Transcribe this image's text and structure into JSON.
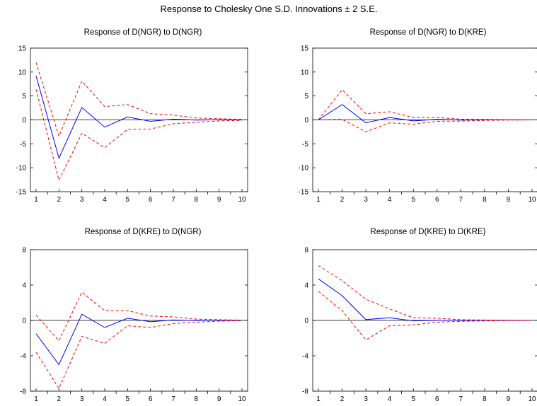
{
  "figure": {
    "title": "Response to Cholesky One S.D. Innovations ± 2 S.E.",
    "colors": {
      "response": "#0000ff",
      "band": "#ff0000",
      "axis": "#000000"
    },
    "line_styles": {
      "response": "solid",
      "band": "dashed"
    },
    "panels": [
      {
        "title": "Response of D(NGR) to D(NGR)",
        "ylim": [
          -15,
          15
        ],
        "yticks": [
          "15",
          "10",
          "5",
          "0",
          "-5",
          "-10",
          "-15"
        ],
        "ytick_values": [
          15,
          10,
          5,
          0,
          -5,
          -10,
          -15
        ],
        "xticks": [
          "1",
          "2",
          "3",
          "4",
          "5",
          "6",
          "7",
          "8",
          "9",
          "10"
        ]
      },
      {
        "title": "Response of D(NGR) to D(KRE)",
        "ylim": [
          -15,
          15
        ],
        "yticks": [
          "15",
          "10",
          "5",
          "0",
          "-5",
          "-10",
          "-15"
        ],
        "ytick_values": [
          15,
          10,
          5,
          0,
          -5,
          -10,
          -15
        ],
        "xticks": [
          "1",
          "2",
          "3",
          "4",
          "5",
          "6",
          "7",
          "8",
          "9",
          "10"
        ]
      },
      {
        "title": "Response of D(KRE) to D(NGR)",
        "ylim": [
          -8,
          8
        ],
        "yticks": [
          "8",
          "4",
          "0",
          "-4",
          "-8"
        ],
        "ytick_values": [
          8,
          4,
          0,
          -4,
          -8
        ],
        "xticks": [
          "1",
          "2",
          "3",
          "4",
          "5",
          "6",
          "7",
          "8",
          "9",
          "10"
        ]
      },
      {
        "title": "Response of D(KRE) to D(KRE)",
        "ylim": [
          -8,
          8
        ],
        "yticks": [
          "8",
          "4",
          "0",
          "-4",
          "-8"
        ],
        "ytick_values": [
          8,
          4,
          0,
          -4,
          -8
        ],
        "xticks": [
          "1",
          "2",
          "3",
          "4",
          "5",
          "6",
          "7",
          "8",
          "9",
          "10"
        ]
      }
    ]
  },
  "chart_data": [
    {
      "type": "line",
      "x": [
        1,
        2,
        3,
        4,
        5,
        6,
        7,
        8,
        9,
        10
      ],
      "ylim": [
        -15,
        15
      ],
      "series": [
        {
          "values": [
            9.2,
            -8.0,
            2.6,
            -1.5,
            0.6,
            -0.3,
            0.15,
            -0.05,
            0.02,
            0.0
          ]
        },
        {
          "values": [
            12.0,
            -3.4,
            8.1,
            2.8,
            3.2,
            1.3,
            1.0,
            0.4,
            0.25,
            0.1
          ]
        },
        {
          "values": [
            6.4,
            -12.6,
            -2.8,
            -5.8,
            -2.0,
            -1.9,
            -0.8,
            -0.5,
            -0.2,
            -0.1
          ]
        }
      ]
    },
    {
      "type": "line",
      "x": [
        1,
        2,
        3,
        4,
        5,
        6,
        7,
        8,
        9,
        10
      ],
      "ylim": [
        -15,
        15
      ],
      "series": [
        {
          "values": [
            0.0,
            3.2,
            -0.6,
            0.5,
            -0.2,
            0.1,
            -0.05,
            0.02,
            0.0,
            0.0
          ]
        },
        {
          "values": [
            0.0,
            6.3,
            1.3,
            1.7,
            0.5,
            0.5,
            0.15,
            0.1,
            0.05,
            0.02
          ]
        },
        {
          "values": [
            0.0,
            0.1,
            -2.5,
            -0.6,
            -0.9,
            -0.3,
            -0.25,
            -0.1,
            -0.05,
            -0.02
          ]
        }
      ]
    },
    {
      "type": "line",
      "x": [
        1,
        2,
        3,
        4,
        5,
        6,
        7,
        8,
        9,
        10
      ],
      "ylim": [
        -8,
        8
      ],
      "series": [
        {
          "values": [
            -1.5,
            -5.0,
            0.7,
            -0.8,
            0.25,
            -0.15,
            0.05,
            -0.02,
            0.01,
            0.0
          ]
        },
        {
          "values": [
            0.6,
            -2.3,
            3.2,
            1.1,
            1.1,
            0.5,
            0.4,
            0.15,
            0.08,
            0.03
          ]
        },
        {
          "values": [
            -3.6,
            -7.7,
            -1.8,
            -2.6,
            -0.6,
            -0.8,
            -0.35,
            -0.2,
            -0.08,
            -0.03
          ]
        }
      ]
    },
    {
      "type": "line",
      "x": [
        1,
        2,
        3,
        4,
        5,
        6,
        7,
        8,
        9,
        10
      ],
      "ylim": [
        -8,
        8
      ],
      "series": [
        {
          "values": [
            4.7,
            2.8,
            0.1,
            0.3,
            -0.05,
            0.0,
            0.0,
            0.0,
            0.0,
            0.0
          ]
        },
        {
          "values": [
            6.2,
            4.5,
            2.4,
            1.3,
            0.3,
            0.25,
            0.08,
            0.05,
            0.02,
            0.01
          ]
        },
        {
          "values": [
            3.3,
            1.1,
            -2.2,
            -0.6,
            -0.5,
            -0.2,
            -0.1,
            -0.05,
            -0.02,
            -0.01
          ]
        }
      ]
    }
  ]
}
